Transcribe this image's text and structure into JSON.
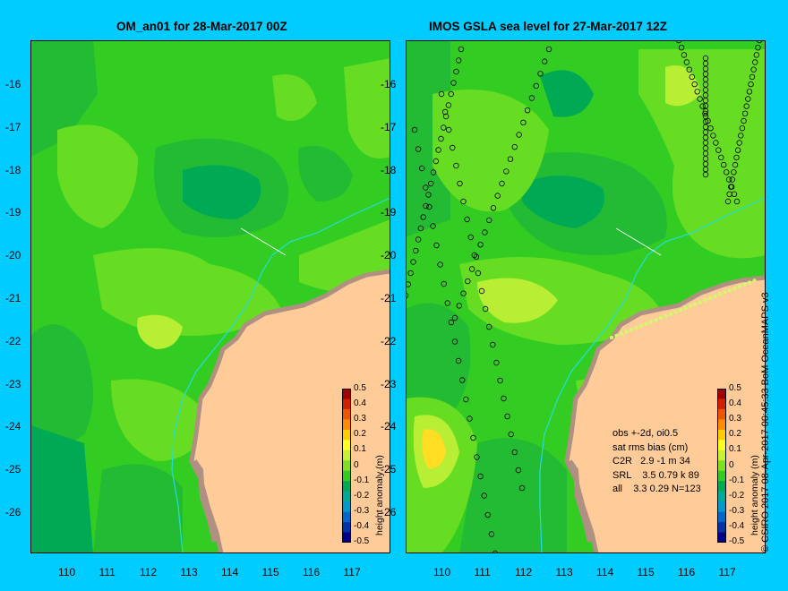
{
  "panels": {
    "left": {
      "title": "OM_an01 for 28-Mar-2017 00Z"
    },
    "right": {
      "title": "IMOS GSLA sea level  for 27-Mar-2017 12Z"
    }
  },
  "axes": {
    "x_ticks": [
      "110",
      "111",
      "112",
      "113",
      "114",
      "115",
      "116",
      "117"
    ],
    "y_ticks": [
      "-16",
      "-17",
      "-18",
      "-19",
      "-20",
      "-21",
      "-22",
      "-23",
      "-24",
      "-25",
      "-26"
    ]
  },
  "colorbar": {
    "title": "height anomaly (m)",
    "tick_labels": [
      "0.5",
      "0.4",
      "0.3",
      "0.2",
      "0.1",
      "0",
      "-0.1",
      "-0.2",
      "-0.3",
      "-0.4",
      "-0.5"
    ],
    "colors": [
      "#a00000",
      "#d02000",
      "#ee5500",
      "#ff8c00",
      "#ffcc00",
      "#ffff22",
      "#c8f030",
      "#80e020",
      "#33cc22",
      "#00aa55",
      "#00aa99",
      "#0099cc",
      "#0066cc",
      "#0033aa",
      "#000088"
    ]
  },
  "stats": {
    "line1": "obs +-2d, oi0.5",
    "line2": "sat rms bias (cm)",
    "line3": "C2R   2.9 -1 m 34",
    "line4": "SRL    3.5 0.79 k 89",
    "line5": "all    3.3 0.29 N=123"
  },
  "credit": "© CSIRO 2017   08-Apr-2017 00:45:33 BoM OceanMAPS v3",
  "map_colors": {
    "ocean_base": "#33cc22",
    "land": "#ffcc99",
    "coast": "#b09080",
    "shelf_line": "#22dddd",
    "marker": "#000000"
  }
}
